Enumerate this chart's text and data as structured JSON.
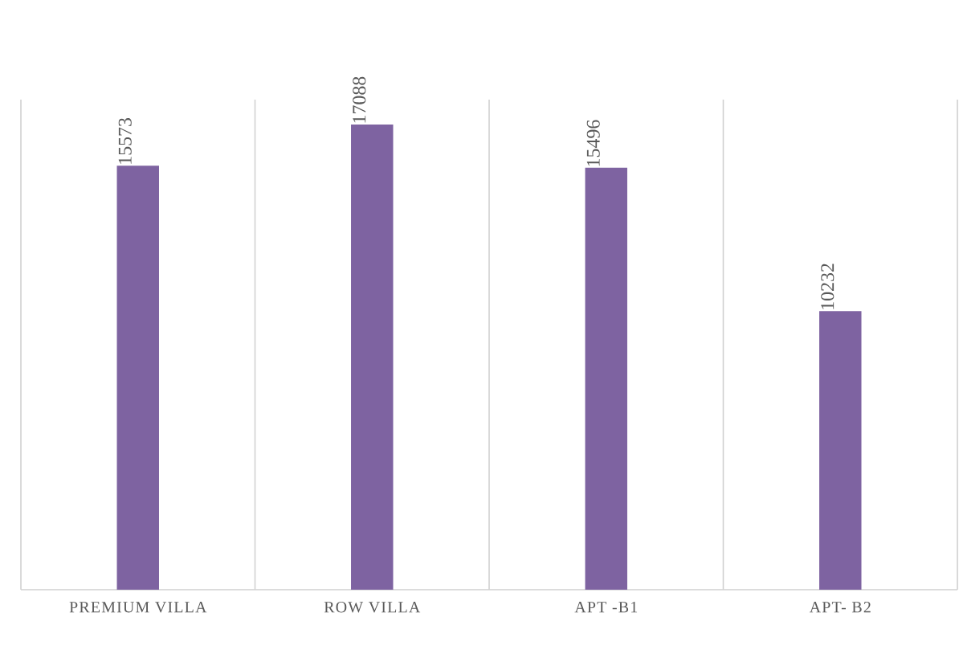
{
  "chart_data": {
    "type": "bar",
    "categories": [
      "PREMIUM VILLA",
      "ROW VILLA",
      "APT -B1",
      "APT- B2"
    ],
    "values": [
      15573,
      17088,
      15496,
      10232
    ],
    "color": "#7e63a1",
    "ylim": [
      0,
      18000
    ],
    "grid": "x",
    "data_labels": true
  }
}
